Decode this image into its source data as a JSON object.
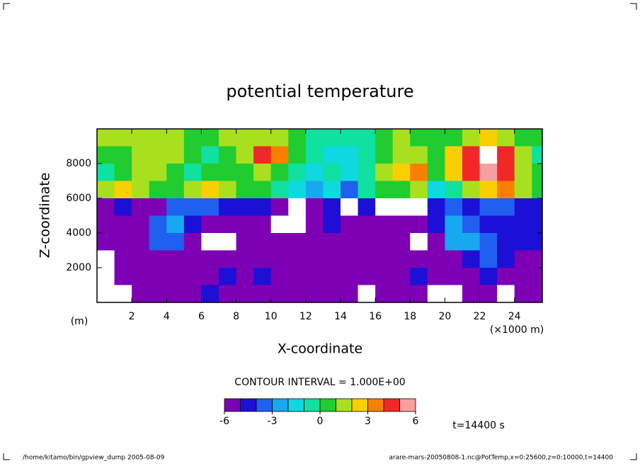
{
  "chart_data": {
    "type": "contour",
    "title": "potential temperature",
    "xlabel": "X-coordinate",
    "ylabel": "Z-coordinate",
    "xunit": "(×1000 m)",
    "yunit": "(m)",
    "xlim": [
      0,
      25600
    ],
    "ylim": [
      0,
      10000
    ],
    "xticks": [
      {
        "value": 2000,
        "label": "2"
      },
      {
        "value": 4000,
        "label": "4"
      },
      {
        "value": 6000,
        "label": "6"
      },
      {
        "value": 8000,
        "label": "8"
      },
      {
        "value": 10000,
        "label": "10"
      },
      {
        "value": 12000,
        "label": "12"
      },
      {
        "value": 14000,
        "label": "14"
      },
      {
        "value": 16000,
        "label": "16"
      },
      {
        "value": 18000,
        "label": "18"
      },
      {
        "value": 20000,
        "label": "20"
      },
      {
        "value": 22000,
        "label": "22"
      },
      {
        "value": 24000,
        "label": "24"
      }
    ],
    "yticks": [
      2000,
      4000,
      6000,
      8000
    ],
    "field": {
      "x": [
        500,
        1500,
        2500,
        3500,
        4500,
        5500,
        6500,
        7500,
        8500,
        9500,
        10500,
        11500,
        12500,
        13500,
        14500,
        15500,
        16500,
        17500,
        18500,
        19500,
        20500,
        21500,
        22500,
        23500,
        24500,
        25500
      ],
      "z": [
        9500,
        8500,
        7500,
        6500,
        5500,
        4500,
        3500,
        2500,
        1500,
        500
      ],
      "cell": [
        1000,
        1000
      ],
      "values": [
        [
          1,
          1,
          1,
          1,
          1,
          0,
          0,
          1,
          1,
          1,
          1,
          0,
          -1,
          -1,
          -1,
          -1,
          0,
          1,
          0,
          0,
          0,
          1,
          2,
          1,
          0,
          0
        ],
        [
          0,
          0,
          1,
          1,
          1,
          0,
          -1,
          0,
          1,
          4,
          3,
          0,
          -1,
          -2,
          -2,
          -1,
          0,
          1,
          1,
          0,
          2,
          4,
          7,
          4,
          1,
          -1
        ],
        [
          -1,
          0,
          1,
          1,
          0,
          -1,
          0,
          0,
          0,
          1,
          0,
          -1,
          -2,
          -1,
          -2,
          -1,
          1,
          2,
          3,
          0,
          2,
          4,
          5,
          4,
          1,
          0
        ],
        [
          1,
          2,
          1,
          0,
          0,
          1,
          2,
          1,
          0,
          0,
          -1,
          -2,
          -3,
          -2,
          -4,
          -1,
          0,
          0,
          1,
          -2,
          -1,
          1,
          2,
          3,
          1,
          0
        ],
        [
          -6,
          -5,
          -6,
          -6,
          -4,
          -4,
          -4,
          -5,
          -5,
          -5,
          -6,
          -7,
          -6,
          -5,
          -7,
          -5,
          -7,
          -7,
          -7,
          -5,
          -4,
          -5,
          -4,
          -4,
          -5,
          -5
        ],
        [
          -6,
          -6,
          -6,
          -4,
          -3,
          -5,
          -6,
          -6,
          -6,
          -6,
          -7,
          -7,
          -6,
          -5,
          -6,
          -6,
          -6,
          -6,
          -6,
          -5,
          -3,
          -4,
          -5,
          -5,
          -5,
          -5
        ],
        [
          -6,
          -6,
          -6,
          -4,
          -4,
          -6,
          -7,
          -7,
          -6,
          -6,
          -6,
          -6,
          -6,
          -6,
          -6,
          -6,
          -6,
          -6,
          -7,
          -6,
          -3,
          -3,
          -4,
          -5,
          -5,
          -5
        ],
        [
          -7,
          -6,
          -6,
          -6,
          -6,
          -6,
          -6,
          -6,
          -6,
          -6,
          -6,
          -6,
          -6,
          -6,
          -6,
          -6,
          -6,
          -6,
          -6,
          -6,
          -6,
          -5,
          -4,
          -5,
          -6,
          -6
        ],
        [
          -7,
          -6,
          -6,
          -6,
          -6,
          -6,
          -6,
          -5,
          -6,
          -5,
          -6,
          -6,
          -6,
          -6,
          -6,
          -6,
          -6,
          -6,
          -5,
          -6,
          -6,
          -6,
          -5,
          -6,
          -6,
          -6
        ],
        [
          -7,
          -7,
          -6,
          -6,
          -6,
          -6,
          -5,
          -6,
          -6,
          -6,
          -6,
          -6,
          -6,
          -6,
          -6,
          -7,
          -6,
          -6,
          -6,
          -7,
          -7,
          -6,
          -6,
          -7,
          -6,
          -6
        ]
      ]
    },
    "levels": [
      -6,
      -5,
      -4,
      -3,
      -2,
      -1,
      0,
      1,
      2,
      3,
      4,
      5,
      6
    ],
    "colors": [
      "#7d00b4",
      "#1c10d6",
      "#2060ee",
      "#18a8f0",
      "#10d8e0",
      "#10e0a0",
      "#20cc30",
      "#a8e020",
      "#f8d000",
      "#f88000",
      "#f02828",
      "#f4a0a0"
    ],
    "colorbar_ticks": [
      -6,
      -3,
      0,
      3,
      6
    ],
    "contour_note": "CONTOUR INTERVAL = 1.000E+00",
    "time_label": "t=14400 s",
    "footer_left": "/home/kitamo/bin/gpview_dump  2005-08-09",
    "footer_right": "arare-mars-20050808-1.nc@PotTemp,x=0:25600,z=0:10000,t=14400"
  }
}
